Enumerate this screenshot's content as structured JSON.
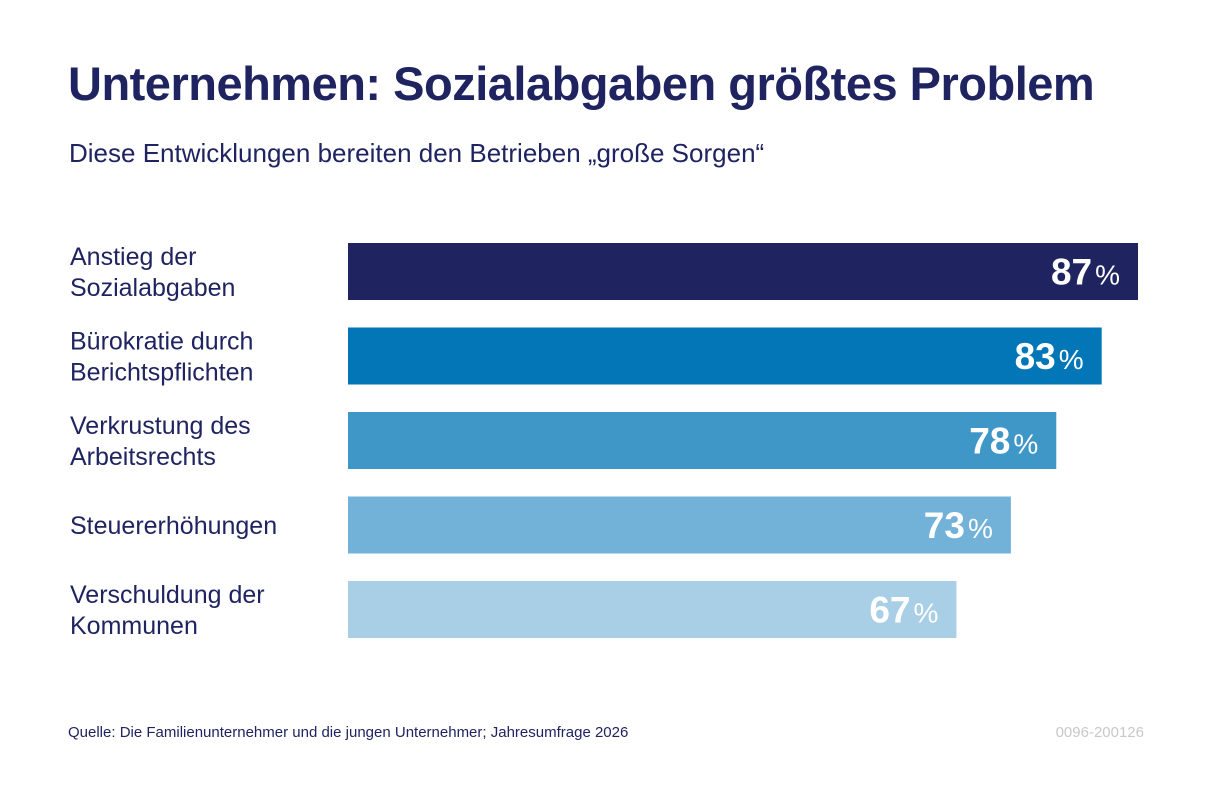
{
  "header": {
    "title": "Unternehmen: Sozialabgaben größtes Problem",
    "subtitle": "Diese Entwicklungen bereiten den Betrieben „große Sorgen“"
  },
  "footer": {
    "source": "Quelle: Die Familienunternehmer und die jungen Unternehmer; Jahresumfrage 2026",
    "code": "0096-200126"
  },
  "chart_data": {
    "type": "bar",
    "orientation": "horizontal",
    "title": "Unternehmen: Sozialabgaben größtes Problem",
    "subtitle": "Diese Entwicklungen bereiten den Betrieben „große Sorgen“",
    "categories": [
      [
        "Anstieg der",
        "Sozialabgaben"
      ],
      [
        "Bürokratie durch",
        "Berichtspflichten"
      ],
      [
        "Verkrustung des",
        "Arbeitsrechts"
      ],
      [
        "Steuererhöhungen"
      ],
      [
        "Verschuldung der",
        "Kommunen"
      ]
    ],
    "values": [
      87,
      83,
      78,
      73,
      67
    ],
    "unit": "%",
    "colors": [
      "#1f2461",
      "#0276b6",
      "#3f97c7",
      "#72b1d8",
      "#a8cfe6"
    ],
    "xlabel": "",
    "ylabel": "",
    "xlim": [
      0,
      87
    ],
    "grid": false,
    "legend": "none"
  }
}
